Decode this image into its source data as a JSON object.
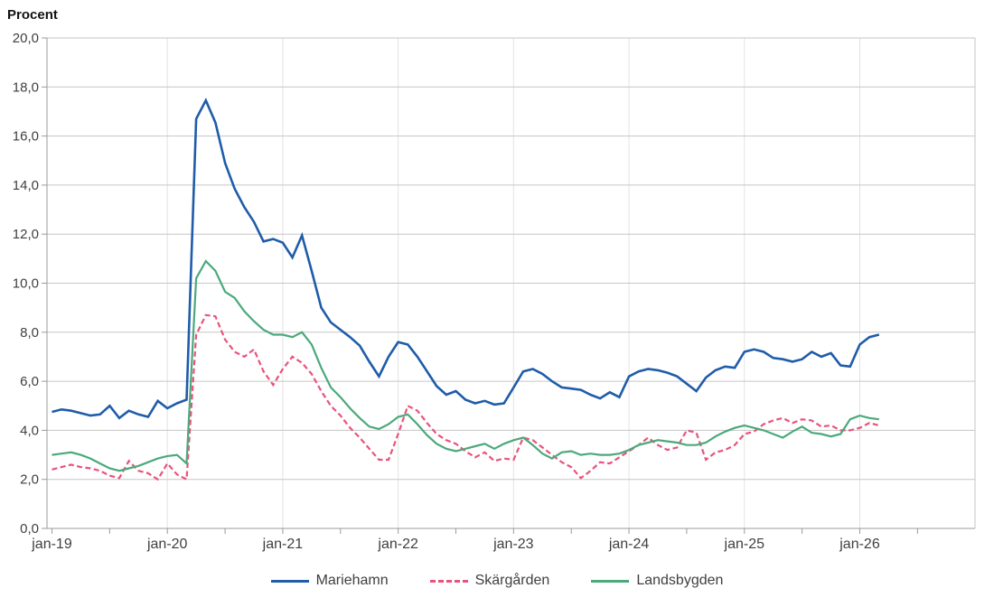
{
  "title": "Procent",
  "legend": {
    "items": [
      {
        "label": "Mariehamn",
        "color": "#1f5ca9",
        "dashed": false
      },
      {
        "label": "Skärgården",
        "color": "#e8537c",
        "dashed": true
      },
      {
        "label": "Landsbygden",
        "color": "#4ba97b",
        "dashed": false
      }
    ]
  },
  "chart_data": {
    "type": "line",
    "title": "Procent",
    "xlabel": "",
    "ylabel": "Procent",
    "ylim": [
      0,
      20
    ],
    "y_tick_step": 2,
    "y_tick_labels": [
      "0,0",
      "2,0",
      "4,0",
      "6,0",
      "8,0",
      "10,0",
      "12,0",
      "14,0",
      "16,0",
      "18,0",
      "20,0"
    ],
    "x_year_labels": [
      "jan-19",
      "jan-20",
      "jan-21",
      "jan-22",
      "jan-23",
      "jan-24",
      "jan-25",
      "jan-26"
    ],
    "x_months_total": 96,
    "x_minor_tick_every": 6,
    "grid": {
      "horizontal": true,
      "vertical_at_years": true
    },
    "legend_position": "bottom",
    "colors": {
      "grid": "#c6c6c6",
      "year_grid": "#e3e3e3",
      "axis": "#9b9b9b",
      "tick_label": "#3f3f3f"
    },
    "series": [
      {
        "name": "Mariehamn",
        "color": "#1f5ca9",
        "dashed": false,
        "width": 2.6,
        "values": [
          4.75,
          4.85,
          4.8,
          4.7,
          4.6,
          4.65,
          5.0,
          4.5,
          4.8,
          4.65,
          4.55,
          5.2,
          4.9,
          5.1,
          5.25,
          16.7,
          17.45,
          16.55,
          14.9,
          13.85,
          13.1,
          12.5,
          11.7,
          11.8,
          11.65,
          11.05,
          11.95,
          10.5,
          9.0,
          8.4,
          8.1,
          7.8,
          7.45,
          6.8,
          6.2,
          7.0,
          7.6,
          7.5,
          7.0,
          6.4,
          5.8,
          5.45,
          5.6,
          5.25,
          5.1,
          5.2,
          5.05,
          5.1,
          5.75,
          6.4,
          6.5,
          6.3,
          6.0,
          5.75,
          5.7,
          5.65,
          5.45,
          5.3,
          5.55,
          5.35,
          6.2,
          6.4,
          6.5,
          6.45,
          6.35,
          6.2,
          5.9,
          5.6,
          6.15,
          6.45,
          6.6,
          6.55,
          7.2,
          7.3,
          7.2,
          6.95,
          6.9,
          6.8,
          6.9,
          7.2,
          7.0,
          7.15,
          6.65,
          6.6,
          7.5,
          7.8,
          7.9
        ]
      },
      {
        "name": "Skärgården",
        "color": "#e8537c",
        "dashed": true,
        "width": 2.2,
        "values": [
          2.4,
          2.5,
          2.6,
          2.5,
          2.45,
          2.35,
          2.15,
          2.05,
          2.75,
          2.35,
          2.25,
          2.0,
          2.65,
          2.2,
          2.0,
          7.9,
          8.7,
          8.65,
          7.7,
          7.2,
          7.0,
          7.3,
          6.4,
          5.85,
          6.5,
          7.0,
          6.75,
          6.3,
          5.6,
          5.0,
          4.6,
          4.1,
          3.7,
          3.25,
          2.8,
          2.8,
          3.85,
          5.0,
          4.8,
          4.3,
          3.85,
          3.6,
          3.45,
          3.15,
          2.9,
          3.1,
          2.75,
          2.85,
          2.8,
          3.7,
          3.6,
          3.3,
          3.0,
          2.7,
          2.5,
          2.05,
          2.35,
          2.7,
          2.65,
          2.9,
          3.15,
          3.4,
          3.7,
          3.4,
          3.2,
          3.3,
          4.0,
          3.9,
          2.8,
          3.1,
          3.2,
          3.4,
          3.85,
          3.95,
          4.25,
          4.4,
          4.5,
          4.3,
          4.45,
          4.4,
          4.15,
          4.2,
          4.0,
          4.0,
          4.1,
          4.3,
          4.2
        ]
      },
      {
        "name": "Landsbygden",
        "color": "#4ba97b",
        "dashed": false,
        "width": 2.2,
        "values": [
          3.0,
          3.05,
          3.1,
          3.0,
          2.85,
          2.65,
          2.45,
          2.35,
          2.45,
          2.55,
          2.7,
          2.85,
          2.95,
          3.0,
          2.65,
          10.2,
          10.9,
          10.5,
          9.65,
          9.4,
          8.85,
          8.45,
          8.1,
          7.9,
          7.9,
          7.8,
          8.0,
          7.5,
          6.55,
          5.75,
          5.35,
          4.9,
          4.5,
          4.15,
          4.05,
          4.25,
          4.55,
          4.65,
          4.25,
          3.8,
          3.45,
          3.25,
          3.15,
          3.25,
          3.35,
          3.45,
          3.25,
          3.45,
          3.6,
          3.7,
          3.4,
          3.05,
          2.85,
          3.1,
          3.15,
          3.0,
          3.05,
          3.0,
          3.0,
          3.05,
          3.2,
          3.4,
          3.5,
          3.6,
          3.55,
          3.5,
          3.4,
          3.4,
          3.5,
          3.75,
          3.95,
          4.1,
          4.2,
          4.1,
          4.0,
          3.85,
          3.7,
          3.95,
          4.15,
          3.9,
          3.85,
          3.75,
          3.85,
          4.45,
          4.6,
          4.5,
          4.45
        ]
      }
    ]
  }
}
